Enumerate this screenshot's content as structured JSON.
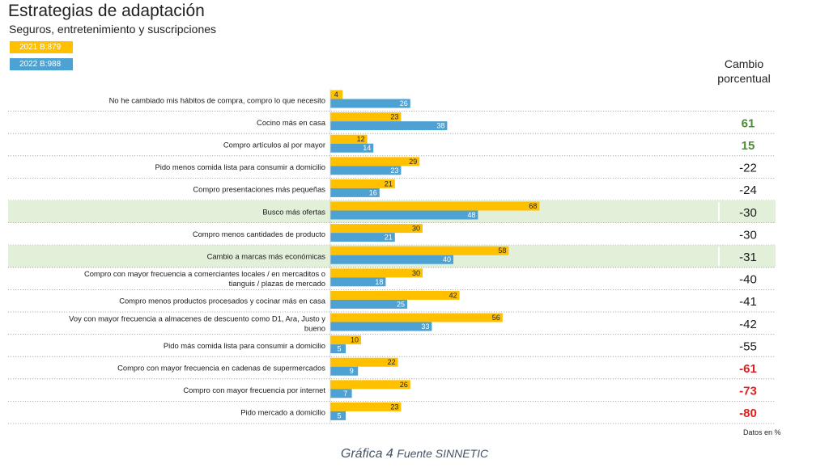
{
  "title": "Estrategias de adaptación",
  "subtitle": "Seguros, entretenimiento y suscripciones",
  "change_header": "Cambio porcentual",
  "change_header_lines": [
    "Cambio",
    "porcentual"
  ],
  "footnote": "Datos en %",
  "caption": {
    "main": "Gráfica 4",
    "source": "Fuente SINNETIC"
  },
  "colors": {
    "series_2021": "#FFC000",
    "series_2022": "#4EA1D3",
    "positive": "#4E8B3A",
    "negative": "#E02020",
    "neutral": "#1a1a1a",
    "highlight_row": "#E2EFD9"
  },
  "chart_data": {
    "type": "bar",
    "orientation": "horizontal",
    "xlim": [
      0,
      100
    ],
    "categories": [
      "No he cambiado mis hábitos de compra, compro lo que necesito",
      "Cocino más en casa",
      "Compro artículos al por mayor",
      "Pido menos comida lista para consumir a domicilio",
      "Compro presentaciones más pequeñas",
      "Busco más ofertas",
      "Compro menos cantidades de producto",
      "Cambio a marcas más económicas",
      "Compro con mayor frecuencia a comerciantes locales / en mercaditos o tianguis / plazas de mercado",
      "Compro menos productos procesados y cocinar más en casa",
      "Voy con mayor frecuencia a almacenes de descuento como D1, Ara, Justo y bueno",
      "Pido más comida lista para consumir a domicilio",
      "Compro con mayor frecuencia en cadenas de supermercados",
      "Compro con mayor frecuencia por internet",
      "Pido mercado a domicilio"
    ],
    "series": [
      {
        "name": "2021 B:879",
        "values": [
          4,
          23,
          12,
          29,
          21,
          68,
          30,
          58,
          30,
          42,
          56,
          10,
          22,
          26,
          23
        ]
      },
      {
        "name": "2022 B:988",
        "values": [
          26,
          38,
          14,
          23,
          16,
          48,
          21,
          40,
          18,
          25,
          33,
          5,
          9,
          7,
          5
        ]
      }
    ],
    "change": [
      "",
      "61",
      "15",
      "-22",
      "-24",
      "-30",
      "-30",
      "-31",
      "-40",
      "-41",
      "-42",
      "-55",
      "-61",
      "-73",
      "-80"
    ],
    "change_style": [
      "neutral",
      "positive",
      "positive",
      "neutral",
      "neutral",
      "neutral",
      "neutral",
      "neutral",
      "neutral",
      "neutral",
      "neutral",
      "neutral",
      "negative",
      "negative",
      "negative"
    ],
    "highlighted_rows": [
      5,
      7
    ]
  }
}
